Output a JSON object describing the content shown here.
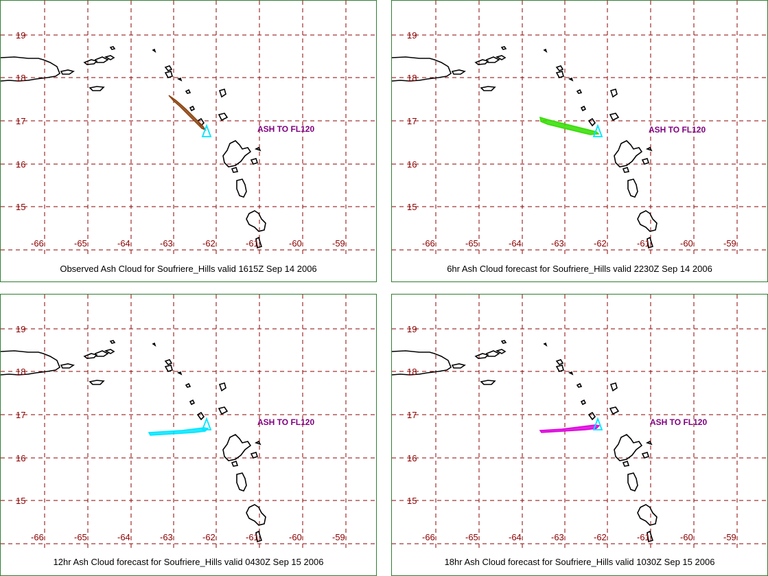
{
  "map": {
    "lat_labels": [
      "19",
      "18",
      "17",
      "16",
      "15"
    ],
    "lon_labels": [
      "-66",
      "-65",
      "-64",
      "-63",
      "-62",
      "-61",
      "-60",
      "-59"
    ],
    "grid_color": "#8b0000",
    "coast_color": "#000000",
    "volcano_color": "#00e5ff",
    "label_color": "#800080"
  },
  "panels": [
    {
      "caption": "Observed Ash Cloud for Soufriere_Hills valid 1615Z Sep 14 2006",
      "ash_label": "ASH TO FL120",
      "cloud_color": "#8b4513"
    },
    {
      "caption": "6hr Ash Cloud forecast for Soufriere_Hills valid 2230Z Sep 14 2006",
      "ash_label": "ASH TO FL120",
      "cloud_color": "#33dd00"
    },
    {
      "caption": "12hr Ash Cloud forecast for Soufriere_Hills valid 0430Z Sep 15 2006",
      "ash_label": "ASH TO FL120",
      "cloud_color": "#00e5ff"
    },
    {
      "caption": "18hr Ash Cloud forecast for Soufriere_Hills valid 1030Z Sep 15 2006",
      "ash_label": "ASH TO FL120",
      "cloud_color": "#dd00dd"
    }
  ]
}
